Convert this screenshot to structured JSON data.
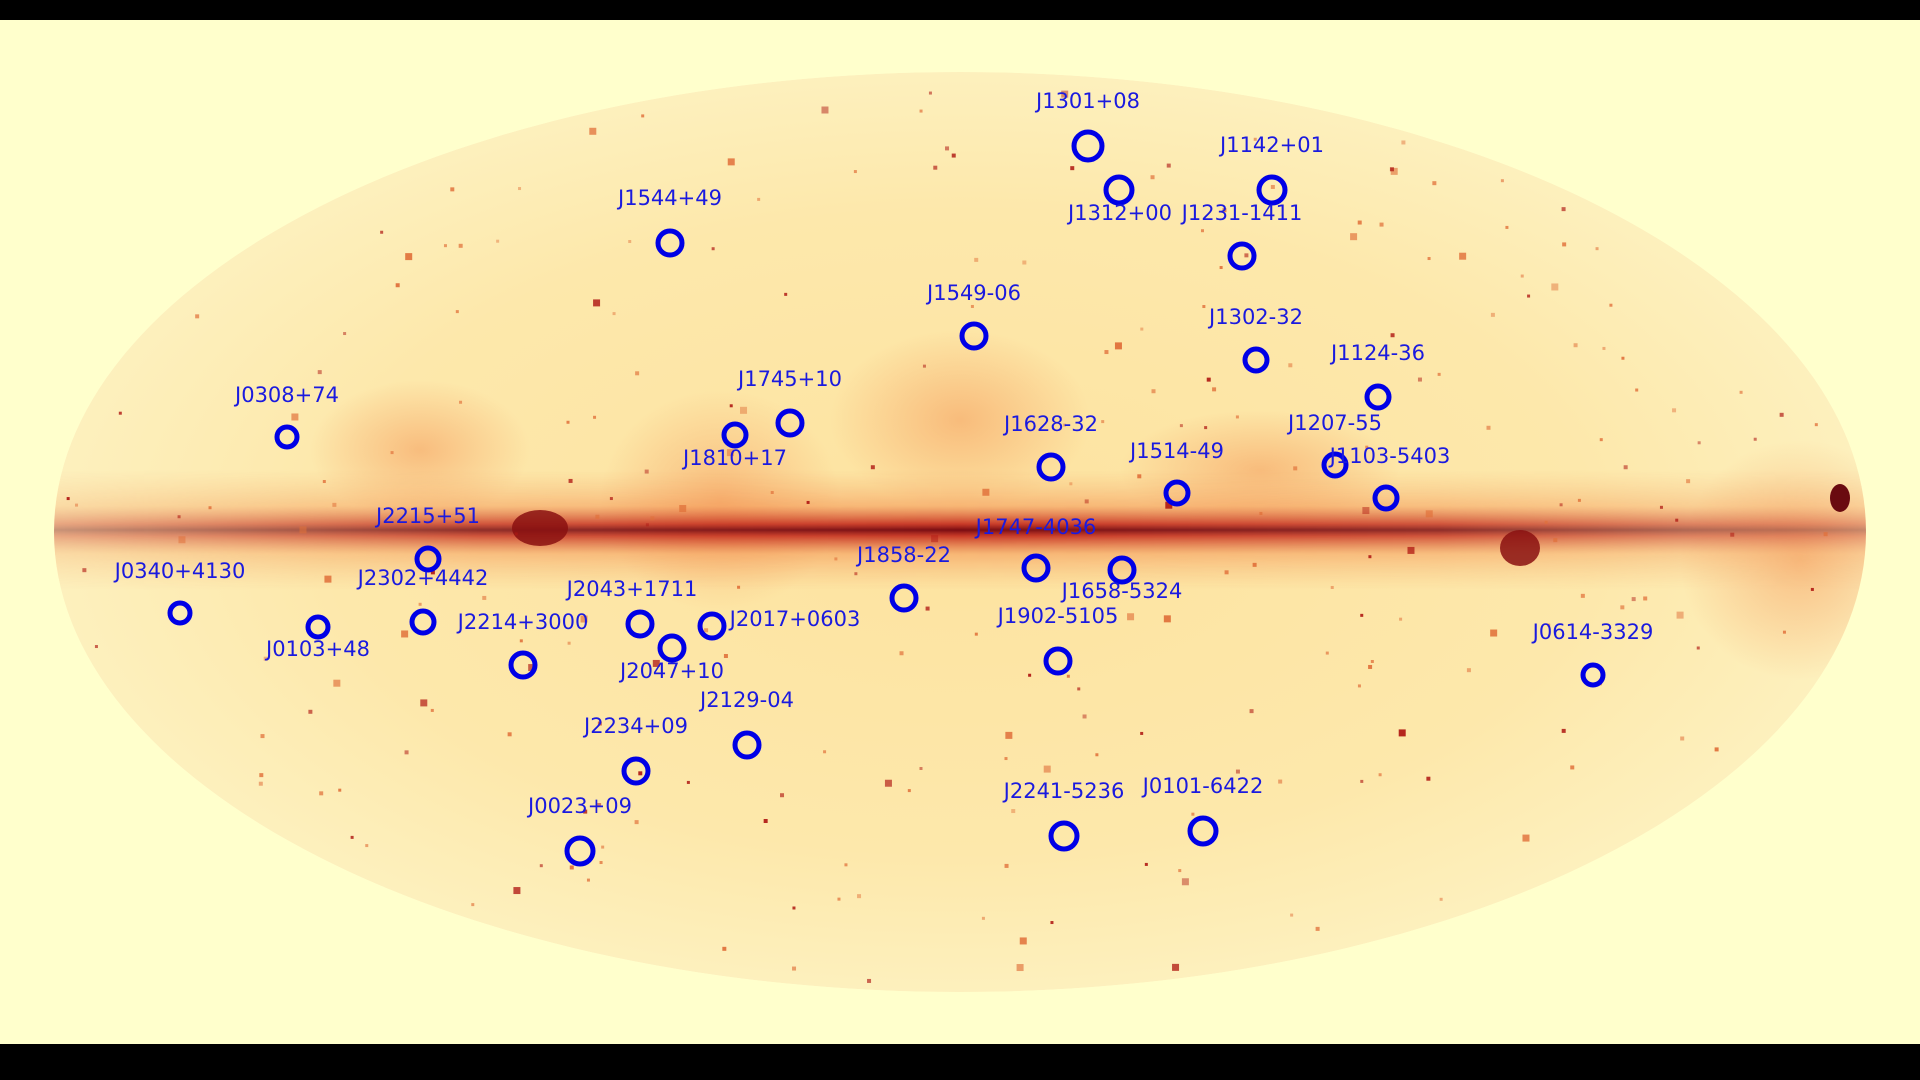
{
  "colors": {
    "letterbox": "#000000",
    "background": "#ffffcc",
    "sky_base": "#fde9a6",
    "plane_dark": "#7a0c12",
    "plane_mid": "#d23a1f",
    "marker": "#0000e6",
    "label": "#1a1adf"
  },
  "map": {
    "projection": "mollweide",
    "coordinate_system": "galactic"
  },
  "sources": [
    {
      "name": "J1301+08"
    },
    {
      "name": "J1142+01"
    },
    {
      "name": "J1312+00"
    },
    {
      "name": "J1231-1411"
    },
    {
      "name": "J1544+49"
    },
    {
      "name": "J1549-06"
    },
    {
      "name": "J1302-32"
    },
    {
      "name": "J1124-36"
    },
    {
      "name": "J0308+74"
    },
    {
      "name": "J1745+10"
    },
    {
      "name": "J1810+17"
    },
    {
      "name": "J1628-32"
    },
    {
      "name": "J1207-55"
    },
    {
      "name": "J1514-49"
    },
    {
      "name": "J1103-5403"
    },
    {
      "name": "J2215+51"
    },
    {
      "name": "J1747-4036"
    },
    {
      "name": "J1858-22"
    },
    {
      "name": "J1658-5324"
    },
    {
      "name": "J0340+4130"
    },
    {
      "name": "J2302+4442"
    },
    {
      "name": "J2043+1711"
    },
    {
      "name": "J2017+0603"
    },
    {
      "name": "J0103+48"
    },
    {
      "name": "J2214+3000"
    },
    {
      "name": "J2047+10"
    },
    {
      "name": "J1902-5105"
    },
    {
      "name": "J0614-3329"
    },
    {
      "name": "J2129-04"
    },
    {
      "name": "J2234+09"
    },
    {
      "name": "J2241-5236"
    },
    {
      "name": "J0101-6422"
    },
    {
      "name": "J0023+09"
    }
  ]
}
